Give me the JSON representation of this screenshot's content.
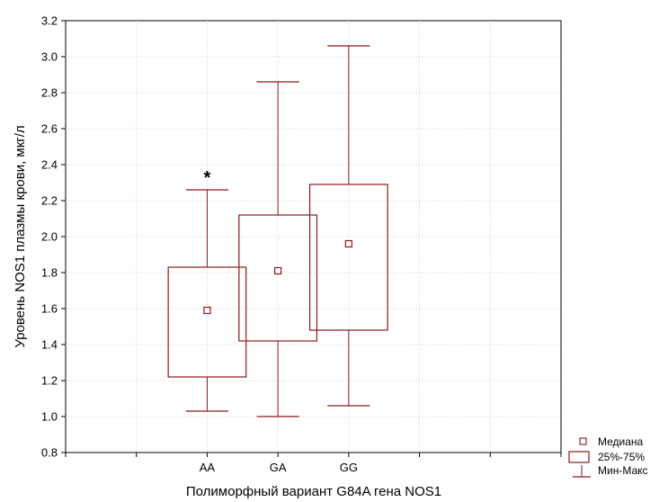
{
  "chart_data": {
    "type": "boxplot",
    "xlabel": "Полиморфный вариант G84A гена NOS1",
    "ylabel": "Уровень NOS1 плазмы крови, мкг/л",
    "ylim": [
      0.8,
      3.2
    ],
    "yticks": [
      "0.8",
      "1.0",
      "1.2",
      "1.4",
      "1.6",
      "1.8",
      "2.0",
      "2.2",
      "2.4",
      "2.6",
      "2.8",
      "3.0",
      "3.2"
    ],
    "grid": true,
    "categories": [
      "AA",
      "GA",
      "GG"
    ],
    "boxes": [
      {
        "category": "AA",
        "min": 1.03,
        "q1": 1.22,
        "median": 1.59,
        "q3": 1.83,
        "max": 2.26,
        "annotation": "*"
      },
      {
        "category": "GA",
        "min": 1.0,
        "q1": 1.42,
        "median": 1.81,
        "q3": 2.12,
        "max": 2.86,
        "annotation": ""
      },
      {
        "category": "GG",
        "min": 1.06,
        "q1": 1.48,
        "median": 1.96,
        "q3": 2.29,
        "max": 3.06,
        "annotation": ""
      }
    ],
    "legend": {
      "position": "bottom-right",
      "entries": [
        {
          "symbol": "square",
          "label": "Медиана"
        },
        {
          "symbol": "box",
          "label": "25%-75%"
        },
        {
          "symbol": "whisker",
          "label": "Мин-Макс"
        }
      ]
    },
    "colors": {
      "series": "#8b1a1a",
      "grid": "#c8c8c8",
      "axis": "#000000"
    }
  }
}
